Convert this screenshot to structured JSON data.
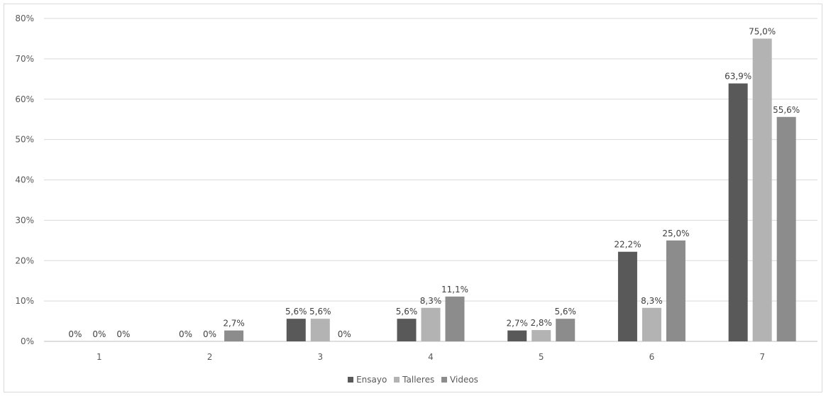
{
  "chart_data": {
    "type": "bar",
    "categories": [
      "1",
      "2",
      "3",
      "4",
      "5",
      "6",
      "7"
    ],
    "series": [
      {
        "name": "Ensayo",
        "color": "#595959",
        "values": [
          0,
          0,
          5.6,
          5.6,
          2.7,
          22.2,
          63.9
        ],
        "labels": [
          "0%",
          "0%",
          "5,6%",
          "5,6%",
          "2,7%",
          "22,2%",
          "63,9%"
        ]
      },
      {
        "name": "Talleres",
        "color": "#b3b3b3",
        "values": [
          0,
          0,
          5.6,
          8.3,
          2.8,
          8.3,
          75.0
        ],
        "labels": [
          "0%",
          "0%",
          "5,6%",
          "8,3%",
          "2,8%",
          "8,3%",
          "75,0%"
        ]
      },
      {
        "name": "Videos",
        "color": "#8c8c8c",
        "values": [
          0,
          2.7,
          0,
          11.1,
          5.6,
          25.0,
          55.6
        ],
        "labels": [
          "0%",
          "2,7%",
          "0%",
          "11,1%",
          "5,6%",
          "25,0%",
          "55,6%"
        ]
      }
    ],
    "yticks": [
      "0%",
      "10%",
      "20%",
      "30%",
      "40%",
      "50%",
      "60%",
      "70%",
      "80%"
    ],
    "ylim": [
      0,
      80
    ],
    "grid": true,
    "legend_position": "bottom"
  }
}
